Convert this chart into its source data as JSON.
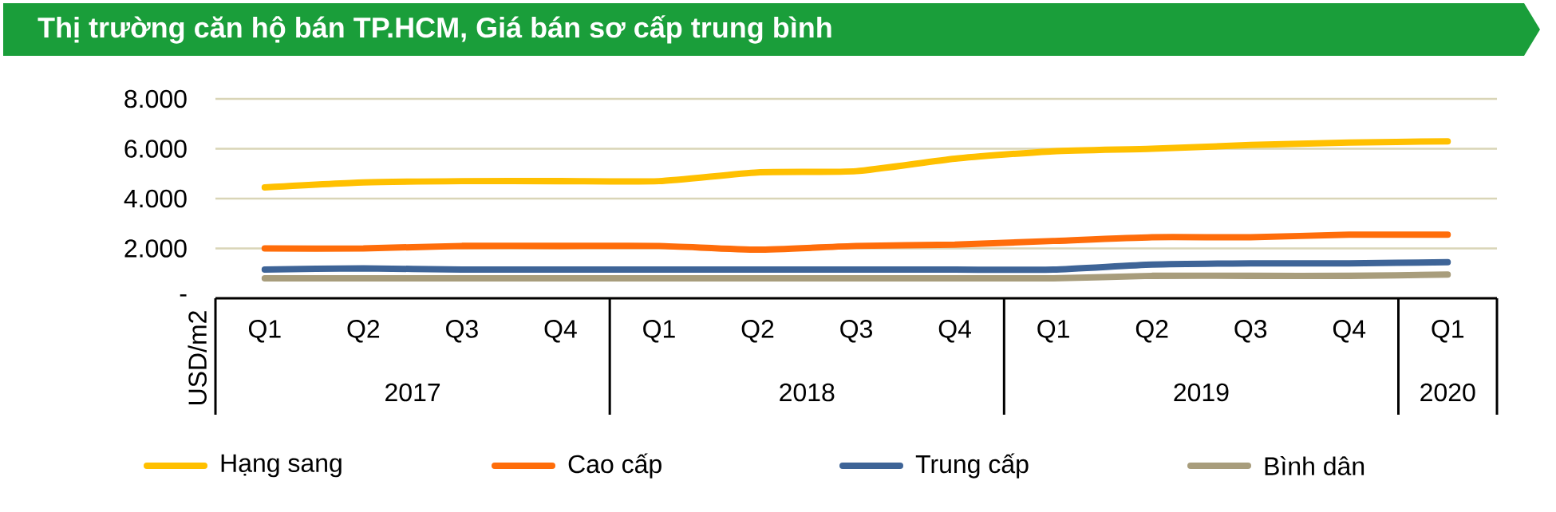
{
  "chart_data": {
    "type": "line",
    "title": "Thị trường căn hộ bán TP.HCM, Giá bán sơ cấp trung bình",
    "ylabel": "USD/m2",
    "categories": [
      "Q1",
      "Q2",
      "Q3",
      "Q4",
      "Q1",
      "Q2",
      "Q3",
      "Q4",
      "Q1",
      "Q2",
      "Q3",
      "Q4",
      "Q1"
    ],
    "annotations": [
      "2017",
      "2018",
      "2019",
      "2020"
    ],
    "series": [
      {
        "name": "Hạng sang",
        "color": "#ffc000",
        "values": [
          4450,
          4650,
          4700,
          4700,
          4700,
          5050,
          5100,
          5600,
          5900,
          6000,
          6150,
          6250,
          6300
        ]
      },
      {
        "name": "Cao cấp",
        "color": "#ff6d0a",
        "values": [
          2000,
          2000,
          2100,
          2100,
          2100,
          1950,
          2100,
          2150,
          2300,
          2450,
          2450,
          2550,
          2550
        ]
      },
      {
        "name": "Trung cấp",
        "color": "#3e6497",
        "values": [
          1150,
          1200,
          1150,
          1150,
          1150,
          1150,
          1150,
          1150,
          1150,
          1350,
          1400,
          1400,
          1450
        ]
      },
      {
        "name": "Bình dân",
        "color": "#a89d7c",
        "values": [
          800,
          800,
          800,
          800,
          800,
          800,
          800,
          800,
          800,
          900,
          900,
          900,
          950
        ]
      }
    ],
    "ylim": [
      0,
      8000
    ],
    "yticks": [
      {
        "value": 0,
        "label": "-"
      },
      {
        "value": 2000,
        "label": "2.000"
      },
      {
        "value": 4000,
        "label": "4.000"
      },
      {
        "value": 6000,
        "label": "6.000"
      },
      {
        "value": 8000,
        "label": "8.000"
      }
    ],
    "grid": "y",
    "legend": "bottom",
    "marker": "none",
    "line_style": "solid"
  }
}
